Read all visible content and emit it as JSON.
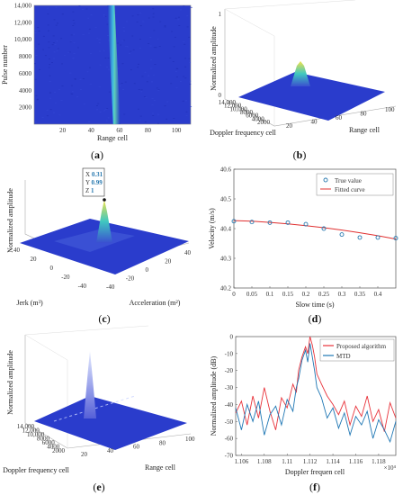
{
  "panels": {
    "a": {
      "label_open": "(",
      "label_letter": "a",
      "label_close": ")",
      "chart_data": {
        "type": "heatmap",
        "xlabel": "Range cell",
        "ylabel": "Pulse number",
        "x_ticks": [
          "20",
          "40",
          "60",
          "80",
          "100"
        ],
        "y_ticks": [
          "2000",
          "4000",
          "6000",
          "8000",
          "10,000",
          "12,000",
          "14,000"
        ],
        "xlim": [
          0,
          110
        ],
        "ylim": [
          0,
          14000
        ],
        "target_track": {
          "x_start": 54,
          "x_end": 58,
          "y_start": 14000,
          "y_end": 0
        },
        "colors": {
          "background": "#2236c8",
          "track": "#44c7e0",
          "peak": "#9ee05a"
        }
      }
    },
    "b": {
      "label_open": "(",
      "label_letter": "b",
      "label_close": ")",
      "chart_data": {
        "type": "surface3d",
        "xlabel": "Doppler frequency cell",
        "ylabel": "Range cell",
        "zlabel": "Normalized amplitude",
        "x_ticks": [
          "2000",
          "4000",
          "6000",
          "8000",
          "10,000",
          "12,000",
          "14,000"
        ],
        "y_ticks": [
          "20",
          "40",
          "60",
          "80",
          "100"
        ],
        "z_ticks": [
          "0",
          "1"
        ],
        "zlim": [
          0,
          1
        ],
        "peak": {
          "z": 1
        }
      }
    },
    "c": {
      "label_open": "(",
      "label_letter": "c",
      "label_close": ")",
      "chart_data": {
        "type": "surface3d",
        "xlabel": "Acceleration (m²)",
        "ylabel": "Jerk (m³)",
        "zlabel": "Normalized amplitude",
        "x_ticks": [
          "-40",
          "-20",
          "0",
          "20",
          "40"
        ],
        "y_ticks": [
          "-40",
          "-20",
          "0",
          "20",
          "40"
        ],
        "zlim": [
          0,
          1
        ],
        "datatip": {
          "x_label": "X",
          "x": "0.31",
          "y_label": "Y",
          "y": "0.99",
          "z_label": "Z",
          "z": "1"
        }
      }
    },
    "d": {
      "label_open": "(",
      "label_letter": "d",
      "label_close": ")",
      "chart_data": {
        "type": "scatter+line",
        "xlabel": "Slow time (s)",
        "ylabel": "Velocity (m/s)",
        "xlim": [
          0,
          0.45
        ],
        "ylim": [
          40.2,
          40.6
        ],
        "x_ticks": [
          "0",
          "0.05",
          "0.1",
          "0.15",
          "0.2",
          "0.25",
          "0.3",
          "0.35",
          "0.4"
        ],
        "y_ticks": [
          "40.2",
          "40.3",
          "40.4",
          "40.5",
          "40.6"
        ],
        "legend_position": "top-right",
        "series": [
          {
            "name": "True value",
            "kind": "points",
            "color": "#2a7ab0",
            "x": [
              0,
              0.05,
              0.1,
              0.15,
              0.2,
              0.25,
              0.3,
              0.35,
              0.4,
              0.45
            ],
            "y": [
              40.425,
              40.422,
              40.42,
              40.42,
              40.415,
              40.4,
              40.38,
              40.37,
              40.37,
              40.368
            ]
          },
          {
            "name": "Fitted curve",
            "kind": "line",
            "color": "#e03030",
            "x": [
              0,
              0.05,
              0.1,
              0.15,
              0.2,
              0.25,
              0.3,
              0.35,
              0.4,
              0.45
            ],
            "y": [
              40.427,
              40.425,
              40.421,
              40.416,
              40.41,
              40.403,
              40.395,
              40.386,
              40.376,
              40.365
            ]
          }
        ]
      }
    },
    "e": {
      "label_open": "(",
      "label_letter": "e",
      "label_close": ")",
      "chart_data": {
        "type": "surface3d",
        "xlabel": "Doppler frequency cell",
        "ylabel": "Range cell",
        "zlabel": "Normalized amplitude",
        "x_ticks": [
          "2000",
          "4000",
          "6000",
          "8000",
          "10,000",
          "12,000",
          "14,000"
        ],
        "y_ticks": [
          "20",
          "40",
          "60",
          "80",
          "100"
        ],
        "zlim": [
          0,
          1
        ]
      }
    },
    "f": {
      "label_open": "(",
      "label_letter": "f",
      "label_close": ")",
      "chart_data": {
        "type": "line",
        "xlabel": "Doppler frequen cell",
        "ylabel": "Normalized amplitude (dB)",
        "x_exponent": "×10⁴",
        "xlim": [
          1.1055,
          1.1195
        ],
        "ylim": [
          -70,
          0
        ],
        "x_ticks": [
          "1.106",
          "1.108",
          "1.11",
          "1.112",
          "1.114",
          "1.116",
          "1.118"
        ],
        "y_ticks": [
          "0",
          "-10",
          "-20",
          "-30",
          "-40",
          "-50",
          "-60",
          "-70"
        ],
        "legend_position": "top-right",
        "series": [
          {
            "name": "Proposed algorithm",
            "color": "#e8333b",
            "x": [
              1.1055,
              1.106,
              1.1065,
              1.107,
              1.1075,
              1.108,
              1.1085,
              1.109,
              1.1095,
              1.11,
              1.1105,
              1.1108,
              1.111,
              1.1113,
              1.1116,
              1.1118,
              1.112,
              1.1122,
              1.1124,
              1.1126,
              1.113,
              1.1135,
              1.114,
              1.1145,
              1.115,
              1.1155,
              1.116,
              1.1165,
              1.117,
              1.1175,
              1.118,
              1.1185,
              1.119,
              1.1195
            ],
            "y": [
              -45,
              -38,
              -52,
              -35,
              -48,
              -30,
              -44,
              -55,
              -36,
              -42,
              -28,
              -33,
              -20,
              -12,
              -6,
              -10,
              0,
              -5,
              -12,
              -22,
              -28,
              -35,
              -40,
              -46,
              -38,
              -52,
              -41,
              -47,
              -35,
              -50,
              -43,
              -56,
              -39,
              -48
            ]
          },
          {
            "name": "MTD",
            "color": "#1f77b4",
            "x": [
              1.1055,
              1.106,
              1.1065,
              1.107,
              1.1075,
              1.108,
              1.1085,
              1.109,
              1.1095,
              1.11,
              1.1105,
              1.1108,
              1.111,
              1.1113,
              1.1116,
              1.1118,
              1.112,
              1.1122,
              1.1124,
              1.1126,
              1.113,
              1.1135,
              1.114,
              1.1145,
              1.115,
              1.1155,
              1.116,
              1.1165,
              1.117,
              1.1175,
              1.118,
              1.1185,
              1.119,
              1.1195
            ],
            "y": [
              -42,
              -55,
              -40,
              -50,
              -38,
              -58,
              -46,
              -41,
              -52,
              -37,
              -44,
              -30,
              -25,
              -14,
              -8,
              -15,
              -4,
              -12,
              -20,
              -30,
              -36,
              -48,
              -42,
              -54,
              -45,
              -58,
              -47,
              -52,
              -44,
              -60,
              -49,
              -55,
              -62,
              -50
            ]
          }
        ]
      }
    }
  }
}
